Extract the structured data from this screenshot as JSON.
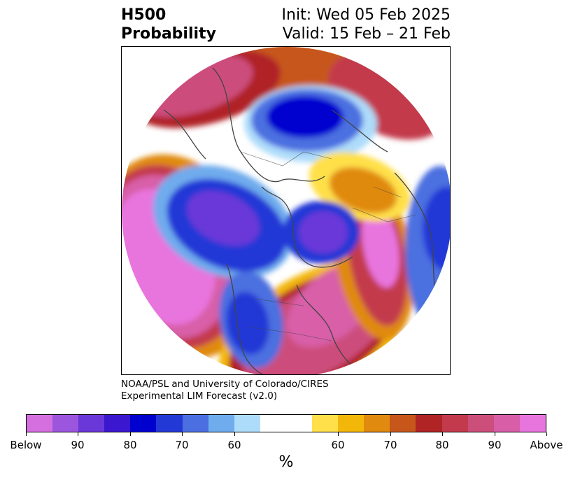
{
  "header": {
    "field": "H500",
    "quantity": "Probability",
    "init": "Init: Wed 05 Feb 2025",
    "valid": "Valid: 15 Feb – 21 Feb"
  },
  "credit": {
    "line1": "NOAA/PSL and University of Colorado/CIRES",
    "line2": "Experimental LIM Forecast (v2.0)"
  },
  "colorbar": {
    "colors": [
      "#d56fe0",
      "#9c55dd",
      "#6a37d8",
      "#3b17cf",
      "#0000cf",
      "#2339d6",
      "#4b6fe0",
      "#6faced",
      "#addcfa",
      "#ffffff",
      "#ffe04a",
      "#f3b70a",
      "#e08a10",
      "#c7561a",
      "#b02426",
      "#c33a4c",
      "#cc4e7b",
      "#d85ea8",
      "#e874de"
    ],
    "tick_labels": [
      "Below",
      "90",
      "80",
      "70",
      "60",
      "60",
      "70",
      "80",
      "90",
      "Above"
    ],
    "units": "%"
  },
  "map": {
    "projection": "north-polar-stereographic",
    "colors": {
      "coast": "#444444",
      "border": "#444444"
    }
  }
}
